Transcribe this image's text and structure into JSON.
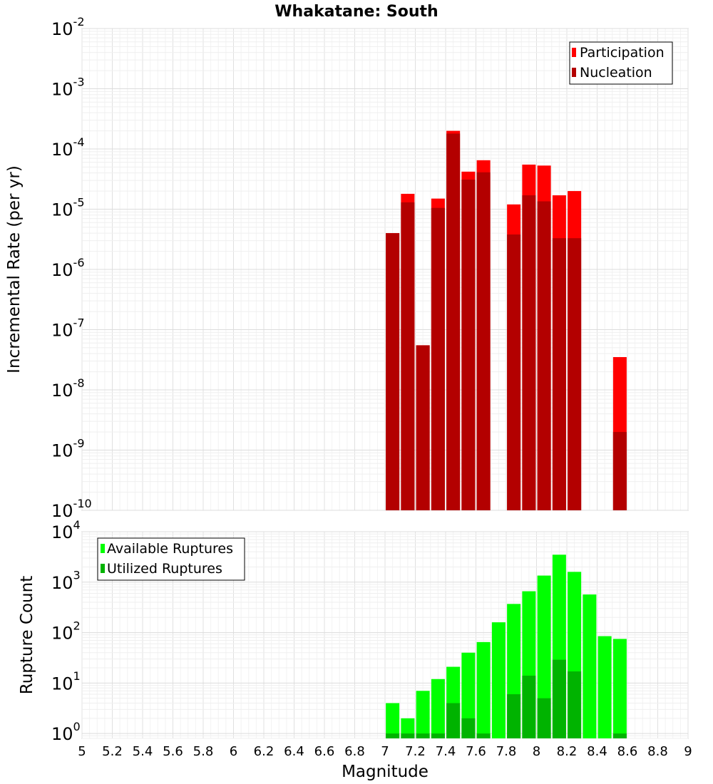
{
  "chart_data": [
    {
      "type": "bar",
      "title": "Whakatane: South",
      "xlabel": "",
      "ylabel": "Incremental Rate (per yr)",
      "y_scale": "log",
      "ylim": [
        1e-10,
        0.01
      ],
      "xlim": [
        5,
        9
      ],
      "grid": true,
      "legend_position": "top-right",
      "series": [
        {
          "name": "Participation",
          "color": "#ff0000",
          "x": [
            7.05,
            7.15,
            7.25,
            7.35,
            7.45,
            7.55,
            7.65,
            7.85,
            7.95,
            8.05,
            8.15,
            8.25,
            8.55
          ],
          "values": [
            4e-06,
            1.8e-05,
            5.5e-08,
            1.5e-05,
            0.0002,
            4.2e-05,
            6.5e-05,
            1.2e-05,
            5.5e-05,
            5.3e-05,
            1.7e-05,
            2e-05,
            3.5e-08
          ]
        },
        {
          "name": "Nucleation",
          "color": "#b30000",
          "x": [
            7.05,
            7.15,
            7.25,
            7.35,
            7.45,
            7.55,
            7.65,
            7.85,
            7.95,
            8.05,
            8.15,
            8.25,
            8.55
          ],
          "values": [
            4e-06,
            1.3e-05,
            5.5e-08,
            1.05e-05,
            0.00018,
            3.1e-05,
            4.1e-05,
            3.8e-06,
            1.7e-05,
            1.35e-05,
            3.3e-06,
            3.3e-06,
            2e-09
          ]
        }
      ],
      "y_ticks": [
        {
          "base": "10",
          "exp": "-10",
          "value": 1e-10
        },
        {
          "base": "10",
          "exp": "-9",
          "value": 1e-09
        },
        {
          "base": "10",
          "exp": "-8",
          "value": 1e-08
        },
        {
          "base": "10",
          "exp": "-7",
          "value": 1e-07
        },
        {
          "base": "10",
          "exp": "-6",
          "value": 1e-06
        },
        {
          "base": "10",
          "exp": "-5",
          "value": 1e-05
        },
        {
          "base": "10",
          "exp": "-4",
          "value": 0.0001
        },
        {
          "base": "10",
          "exp": "-3",
          "value": 0.001
        },
        {
          "base": "10",
          "exp": "-2",
          "value": 0.01
        }
      ]
    },
    {
      "type": "bar",
      "title": "",
      "xlabel": "Magnitude",
      "ylabel": "Rupture Count",
      "y_scale": "log",
      "ylim": [
        0.8,
        10000
      ],
      "xlim": [
        5,
        9
      ],
      "grid": true,
      "legend_position": "top-left",
      "series": [
        {
          "name": "Available Ruptures",
          "color": "#00ff00",
          "x": [
            7.05,
            7.15,
            7.25,
            7.35,
            7.45,
            7.55,
            7.65,
            7.75,
            7.85,
            7.95,
            8.05,
            8.15,
            8.25,
            8.35,
            8.45,
            8.55
          ],
          "values": [
            4,
            2,
            7,
            12,
            21,
            40,
            65,
            160,
            370,
            660,
            1350,
            3500,
            1600,
            570,
            85,
            75
          ]
        },
        {
          "name": "Utilized Ruptures",
          "color": "#00b300",
          "x": [
            7.05,
            7.15,
            7.25,
            7.35,
            7.45,
            7.55,
            7.65,
            7.75,
            7.85,
            7.95,
            8.05,
            8.15,
            8.25,
            8.35,
            8.45,
            8.55
          ],
          "values": [
            1,
            1,
            1,
            1,
            4,
            2,
            1,
            0,
            6,
            14,
            5,
            29,
            17,
            0,
            0,
            1
          ]
        }
      ],
      "y_ticks": [
        {
          "base": "10",
          "exp": "0",
          "value": 1
        },
        {
          "base": "10",
          "exp": "1",
          "value": 10
        },
        {
          "base": "10",
          "exp": "2",
          "value": 100
        },
        {
          "base": "10",
          "exp": "3",
          "value": 1000
        },
        {
          "base": "10",
          "exp": "4",
          "value": 10000
        }
      ],
      "x_ticks": [
        "5",
        "5.2",
        "5.4",
        "5.6",
        "5.8",
        "6",
        "6.2",
        "6.4",
        "6.6",
        "6.8",
        "7",
        "7.2",
        "7.4",
        "7.6",
        "7.8",
        "8",
        "8.2",
        "8.4",
        "8.6",
        "8.8",
        "9"
      ]
    }
  ]
}
